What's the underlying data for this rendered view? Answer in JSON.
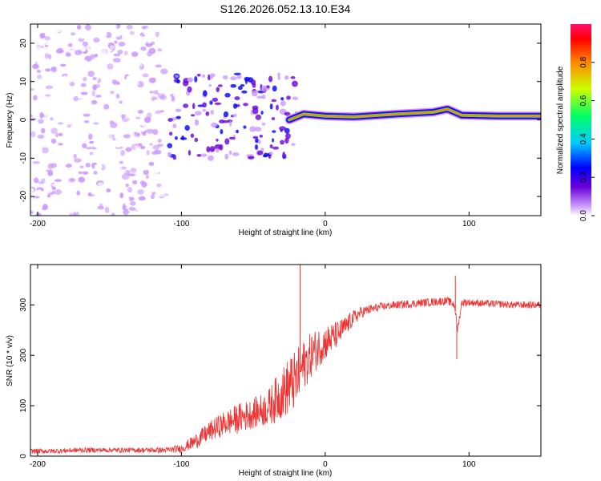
{
  "title": "S126.2026.052.13.10.E34",
  "chart_data": [
    {
      "type": "heatmap",
      "name": "spectrogram",
      "xlabel": "Height of straight line (km)",
      "ylabel": "Frequency (Hz)",
      "xlim": [
        -205,
        150
      ],
      "ylim": [
        -25,
        25
      ],
      "xticks": [
        -200,
        -100,
        0,
        100
      ],
      "xtick_labels": [
        "-200",
        "-100",
        "0",
        "100"
      ],
      "yticks": [
        -20,
        -10,
        0,
        10,
        20
      ],
      "ytick_labels": [
        "-20",
        "-10",
        "0",
        "10",
        "20"
      ],
      "colorbar": {
        "label": "Normalized spectral amplitude",
        "range": [
          0.0,
          1.0
        ],
        "ticks": [
          0.0,
          0.2,
          0.4,
          0.6,
          0.8
        ],
        "tick_labels": [
          "0.0",
          "0.2",
          "0.4",
          "0.6",
          "0.8"
        ],
        "colormap": [
          "#ffffff",
          "#cc99ff",
          "#6a00d8",
          "#0000ff",
          "#00ccff",
          "#00ff66",
          "#ccff00",
          "#ff8800",
          "#ff0000",
          "#ff1070"
        ]
      },
      "regions": [
        {
          "desc": "broadband noise",
          "x": [
            -205,
            -110
          ],
          "y": [
            -25,
            25
          ],
          "amplitude": 0.1
        },
        {
          "desc": "scattered features",
          "x": [
            -110,
            -20
          ],
          "y": [
            -10,
            12
          ],
          "amplitude": 0.3
        },
        {
          "desc": "carrier line",
          "x": [
            -25,
            150
          ],
          "y": [
            0,
            2
          ],
          "amplitude": 0.9
        }
      ],
      "carrier_trace": [
        {
          "x": -25,
          "y": 0.0
        },
        {
          "x": -15,
          "y": 1.5
        },
        {
          "x": 0,
          "y": 1.0
        },
        {
          "x": 20,
          "y": 0.8
        },
        {
          "x": 50,
          "y": 1.5
        },
        {
          "x": 75,
          "y": 2.0
        },
        {
          "x": 85,
          "y": 2.8
        },
        {
          "x": 95,
          "y": 1.2
        },
        {
          "x": 120,
          "y": 1.0
        },
        {
          "x": 150,
          "y": 1.0
        }
      ]
    },
    {
      "type": "line",
      "name": "snr",
      "xlabel": "Height of straight line (km)",
      "ylabel": "SNR (10 * v/v)",
      "xlim": [
        -205,
        150
      ],
      "ylim": [
        0,
        380
      ],
      "xticks": [
        -200,
        -100,
        0,
        100
      ],
      "xtick_labels": [
        "-200",
        "-100",
        "0",
        "100"
      ],
      "yticks": [
        0,
        100,
        200,
        300
      ],
      "ytick_labels": [
        "0",
        "100",
        "200",
        "300"
      ],
      "color": "#ee3333",
      "x": [
        -205,
        -190,
        -170,
        -150,
        -130,
        -110,
        -100,
        -90,
        -80,
        -70,
        -60,
        -50,
        -40,
        -35,
        -30,
        -25,
        -20,
        -18,
        -15,
        -10,
        -5,
        0,
        5,
        10,
        15,
        20,
        25,
        30,
        40,
        50,
        60,
        70,
        80,
        85,
        90,
        92,
        95,
        100,
        110,
        120,
        130,
        140,
        150
      ],
      "y": [
        10,
        10,
        12,
        12,
        12,
        12,
        15,
        30,
        50,
        65,
        75,
        85,
        95,
        110,
        125,
        140,
        150,
        165,
        180,
        200,
        215,
        225,
        235,
        245,
        260,
        275,
        285,
        290,
        297,
        300,
        302,
        305,
        307,
        308,
        300,
        250,
        305,
        305,
        303,
        302,
        300,
        300,
        300
      ],
      "noise_amplitude": [
        5,
        5,
        5,
        5,
        5,
        6,
        8,
        15,
        20,
        25,
        30,
        30,
        35,
        45,
        50,
        60,
        60,
        55,
        50,
        45,
        40,
        35,
        30,
        25,
        20,
        15,
        12,
        10,
        8,
        8,
        8,
        8,
        8,
        8,
        8,
        8,
        8,
        7,
        7,
        7,
        7,
        7,
        7
      ],
      "spikes": [
        {
          "x": -17.5,
          "y": 380
        },
        {
          "x": 90.5,
          "y": 358
        },
        {
          "x": 91.5,
          "y": 192
        }
      ]
    }
  ]
}
